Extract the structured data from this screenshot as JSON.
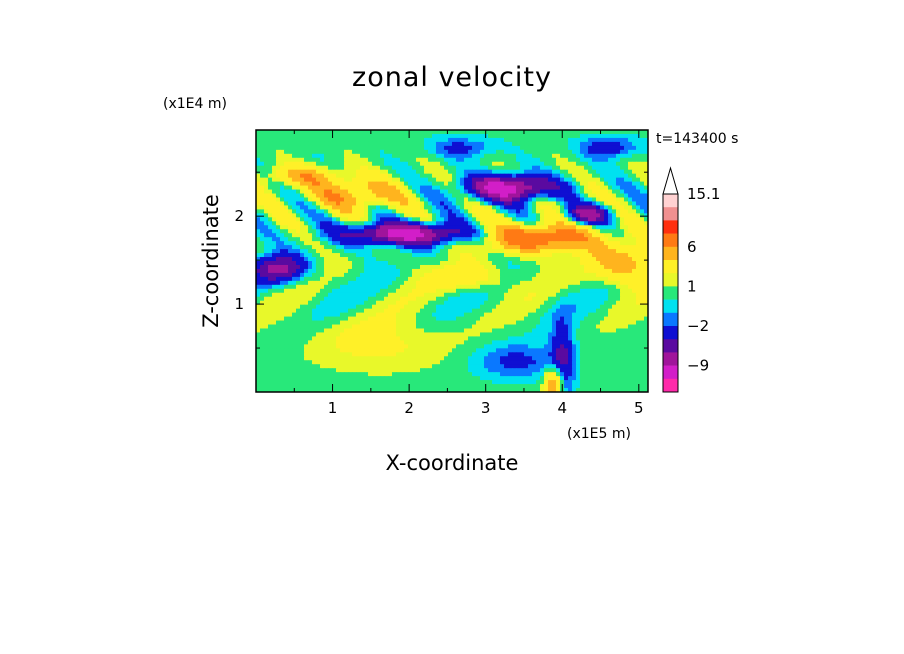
{
  "chart_data": {
    "type": "heatmap",
    "title": "zonal velocity",
    "xlabel": "X-coordinate",
    "ylabel": "Z-coordinate",
    "x_scale_label": "(x1E5 m)",
    "y_scale_label": "(x1E4 m)",
    "time_label": "t=143400 s",
    "xlim": [
      0,
      5.12
    ],
    "ylim": [
      0,
      2.98
    ],
    "x_ticks": [
      "1",
      "2",
      "3",
      "4",
      "5"
    ],
    "y_ticks": [
      "1",
      "2"
    ],
    "colorbar": {
      "levels": [
        -15,
        -12,
        -9,
        -6,
        -4,
        -2,
        -1,
        0,
        1,
        2,
        4,
        6,
        9,
        12,
        15.1
      ],
      "tick_labels": [
        "15.1",
        "6",
        "1",
        "−2",
        "−9"
      ],
      "colors": [
        "#ff2aaa",
        "#d21ec8",
        "#a0149b",
        "#5a0aa0",
        "#0f0fd2",
        "#0a78ff",
        "#00e1f0",
        "#28e87a",
        "#e8f82a",
        "#fff028",
        "#ffb41e",
        "#ff7a14",
        "#ff2f0f",
        "#f09090",
        "#ffd2d2"
      ]
    },
    "features": [
      {
        "x": 1.95,
        "z": 1.8,
        "value": -9,
        "note": "negative band"
      },
      {
        "x": 3.3,
        "z": 2.3,
        "value": -9,
        "note": "negative band"
      },
      {
        "x": 0.55,
        "z": 1.45,
        "value": -6
      },
      {
        "x": 4.35,
        "z": 2.0,
        "value": -6
      },
      {
        "x": 3.7,
        "z": 1.75,
        "value": 6
      },
      {
        "x": 1.3,
        "z": 2.25,
        "value": 4
      },
      {
        "x": 3.9,
        "z": 0.1,
        "value": 6
      }
    ]
  }
}
